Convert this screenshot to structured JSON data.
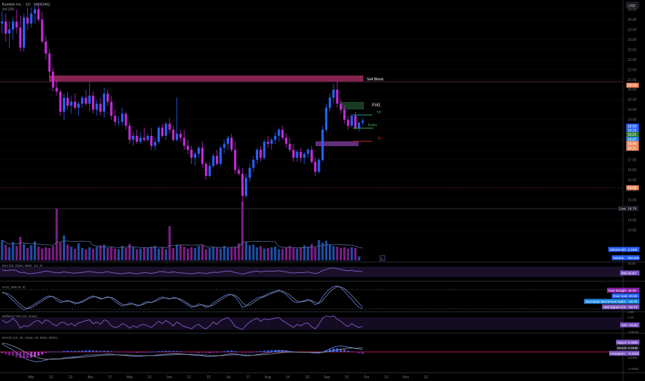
{
  "header": {
    "title": "Bumble Inc. · 1D · NASDAQ",
    "indicator": "Vol (20)",
    "currency": "USD"
  },
  "price_axis": {
    "ticks": [
      "24.50",
      "24.00",
      "23.50",
      "23.00",
      "22.50",
      "22.00",
      "21.50",
      "21.00",
      "20.50",
      "20.00",
      "19.50",
      "19.00",
      "18.50",
      "18.00",
      "17.50",
      "17.00",
      "16.50",
      "16.00",
      "15.50",
      "15.00",
      "14.50",
      "14.00",
      "13.50"
    ],
    "tags": [
      {
        "label": "20.74",
        "color": "#f08a60"
      },
      {
        "label": "19.63",
        "color": "#2962ff"
      },
      {
        "label": "19.22",
        "color": "#2962ff"
      },
      {
        "label": "19.01",
        "color": "#2e7d32"
      },
      {
        "label": "18.87",
        "color": "#1e88e5"
      },
      {
        "label": "18.40",
        "color": "#f08a60"
      },
      {
        "label": "18.21",
        "color": "#f08a60"
      },
      {
        "label": "15.93",
        "color": "#f08a60"
      }
    ],
    "low_label": "Low",
    "low_value": "14.74"
  },
  "annotations": {
    "sell_block": "Sell Block",
    "fvg": "FVG",
    "tp": "TP",
    "entry": "Entry",
    "sl": "SL"
  },
  "volume_panel": {
    "label1": "Volume MA",
    "value1": "2.23M",
    "label2": "Volume",
    "value2": "611.97K",
    "ticks": [
      "30.00"
    ]
  },
  "rsi_panel": {
    "title": "RSI (10, close, SMA, 14, 2)",
    "label": "RSI",
    "value": "51.67"
  },
  "stoch_panel": {
    "title": "UCS_SMI (5, 3)",
    "labels": [
      {
        "label": "Over Bought",
        "value": "40.00"
      },
      {
        "label": "Over Sold",
        "value": "-40.00"
      },
      {
        "label": "Stochastic Momentum Index",
        "value": "-40.76"
      },
      {
        "label": "SMI Signal Line",
        "value": "-32.73"
      }
    ],
    "ticks": [
      "0.00"
    ]
  },
  "williams_panel": {
    "title": "Williams %R (10, close)",
    "label": "%R",
    "value": "-74.25",
    "ticks": [
      "0.00",
      "-100.00"
    ]
  },
  "macd_panel": {
    "title": "MACD (12, 26, close, 10, EMA, EMA)",
    "labels": [
      {
        "label": "Signal",
        "value": "0.4350"
      },
      {
        "label": "MACD",
        "value": "0.2330"
      },
      {
        "label": "Histogram",
        "value": "-0.2020"
      }
    ],
    "ticks": [
      "0.0000",
      "-1.0000"
    ]
  },
  "time_axis": {
    "labels": [
      "Mar",
      "13",
      "22",
      "Apr",
      "17",
      "May",
      "15",
      "Jun",
      "12",
      "22",
      "Jul",
      "17",
      "Aug",
      "14",
      "23",
      "Sep",
      "15",
      "Oct",
      "13",
      "Nov",
      "13"
    ]
  },
  "chart_data": {
    "type": "candlestick",
    "symbol": "BMBL",
    "interval": "1D",
    "exchange": "NASDAQ",
    "y_range": [
      13.5,
      24.8
    ],
    "zones": {
      "sell_block": [
        20.62,
        20.8
      ],
      "fvg": [
        19.35,
        19.6
      ],
      "demand": [
        18.3,
        18.42
      ]
    },
    "levels": {
      "tp": 19.3,
      "entry": 18.98,
      "sl": 18.45,
      "low": 14.74,
      "support": 15.93,
      "resistance": 20.62
    },
    "candles": [
      [
        23.8,
        24.4,
        23.3,
        23.9
      ],
      [
        23.9,
        24.3,
        22.9,
        23.3
      ],
      [
        23.3,
        23.9,
        22.6,
        23.5
      ],
      [
        23.5,
        24.1,
        23.0,
        23.9
      ],
      [
        23.9,
        24.5,
        23.3,
        23.6
      ],
      [
        23.6,
        24.2,
        22.4,
        22.6
      ],
      [
        22.6,
        24.3,
        22.4,
        24.1
      ],
      [
        24.1,
        24.6,
        23.5,
        23.8
      ],
      [
        23.8,
        24.6,
        23.6,
        24.3
      ],
      [
        24.3,
        24.7,
        23.8,
        24.5
      ],
      [
        24.5,
        24.8,
        23.9,
        24.0
      ],
      [
        24.0,
        24.4,
        22.8,
        22.9
      ],
      [
        22.9,
        23.2,
        22.0,
        22.3
      ],
      [
        22.3,
        22.5,
        21.1,
        21.4
      ],
      [
        21.4,
        21.6,
        20.4,
        20.6
      ],
      [
        20.6,
        21.0,
        20.2,
        20.4
      ],
      [
        20.4,
        20.5,
        19.2,
        19.4
      ],
      [
        19.4,
        20.3,
        19.0,
        20.1
      ],
      [
        20.1,
        20.4,
        19.5,
        19.7
      ],
      [
        19.7,
        20.2,
        19.3,
        19.9
      ],
      [
        19.9,
        20.3,
        19.5,
        19.6
      ],
      [
        19.6,
        19.9,
        19.2,
        19.8
      ],
      [
        19.8,
        20.2,
        19.6,
        20.1
      ],
      [
        20.1,
        20.5,
        19.7,
        19.8
      ],
      [
        19.8,
        20.9,
        19.4,
        20.2
      ],
      [
        20.2,
        20.4,
        19.3,
        19.5
      ],
      [
        19.5,
        20.0,
        19.2,
        19.8
      ],
      [
        19.8,
        20.1,
        19.2,
        19.4
      ],
      [
        19.4,
        20.6,
        19.1,
        20.3
      ],
      [
        20.3,
        20.5,
        19.7,
        19.9
      ],
      [
        19.9,
        20.2,
        19.0,
        19.2
      ],
      [
        19.2,
        19.5,
        18.7,
        18.9
      ],
      [
        18.9,
        19.2,
        18.7,
        18.9
      ],
      [
        18.9,
        19.6,
        18.7,
        19.3
      ],
      [
        19.3,
        19.4,
        18.5,
        18.7
      ],
      [
        18.7,
        18.9,
        17.8,
        18.0
      ],
      [
        18.0,
        18.4,
        17.7,
        18.2
      ],
      [
        18.2,
        18.5,
        17.8,
        17.9
      ],
      [
        17.9,
        18.4,
        17.8,
        18.1
      ],
      [
        18.1,
        18.6,
        17.9,
        18.0
      ],
      [
        18.0,
        18.3,
        17.9,
        18.2
      ],
      [
        18.2,
        18.6,
        17.5,
        17.7
      ],
      [
        17.7,
        18.1,
        17.5,
        17.9
      ],
      [
        17.9,
        18.7,
        17.8,
        18.6
      ],
      [
        18.6,
        18.8,
        18.1,
        18.2
      ],
      [
        18.2,
        18.9,
        18.0,
        18.8
      ],
      [
        18.8,
        19.1,
        18.3,
        18.5
      ],
      [
        18.5,
        18.7,
        17.9,
        18.0
      ],
      [
        18.0,
        20.1,
        17.9,
        18.3
      ],
      [
        18.3,
        18.5,
        17.9,
        18.1
      ],
      [
        18.1,
        18.5,
        17.5,
        17.7
      ],
      [
        17.7,
        18.0,
        17.3,
        17.5
      ],
      [
        17.5,
        17.7,
        16.8,
        17.1
      ],
      [
        17.1,
        17.4,
        16.7,
        17.3
      ],
      [
        17.3,
        17.7,
        17.1,
        17.6
      ],
      [
        17.6,
        17.9,
        16.6,
        16.8
      ],
      [
        16.8,
        16.9,
        16.0,
        16.2
      ],
      [
        16.2,
        16.9,
        16.1,
        16.7
      ],
      [
        16.7,
        17.3,
        16.6,
        17.2
      ],
      [
        17.2,
        17.5,
        16.7,
        16.8
      ],
      [
        16.8,
        17.7,
        16.7,
        17.6
      ],
      [
        17.6,
        18.0,
        17.3,
        17.8
      ],
      [
        17.8,
        18.2,
        17.5,
        18.1
      ],
      [
        18.1,
        18.3,
        17.4,
        17.5
      ],
      [
        17.5,
        17.9,
        16.3,
        16.5
      ],
      [
        16.5,
        16.7,
        16.2,
        16.3
      ],
      [
        16.3,
        16.6,
        14.7,
        15.2
      ],
      [
        15.2,
        16.3,
        15.1,
        16.1
      ],
      [
        16.1,
        16.8,
        15.9,
        16.6
      ],
      [
        16.6,
        17.2,
        16.4,
        17.0
      ],
      [
        17.0,
        17.6,
        16.8,
        17.5
      ],
      [
        17.5,
        17.7,
        16.9,
        17.1
      ],
      [
        17.1,
        18.0,
        17.0,
        17.9
      ],
      [
        17.9,
        18.2,
        17.6,
        17.8
      ],
      [
        17.8,
        18.1,
        17.5,
        18.0
      ],
      [
        18.0,
        18.4,
        17.8,
        18.2
      ],
      [
        18.2,
        18.6,
        17.9,
        18.5
      ],
      [
        18.5,
        18.7,
        18.0,
        18.1
      ],
      [
        18.1,
        18.3,
        17.6,
        17.8
      ],
      [
        17.8,
        18.1,
        17.4,
        17.5
      ],
      [
        17.5,
        17.8,
        16.9,
        17.1
      ],
      [
        17.1,
        17.5,
        16.9,
        17.4
      ],
      [
        17.4,
        17.6,
        16.9,
        17.1
      ],
      [
        17.1,
        17.4,
        16.8,
        17.3
      ],
      [
        17.3,
        17.6,
        17.1,
        17.5
      ],
      [
        17.5,
        17.7,
        16.8,
        16.9
      ],
      [
        16.9,
        17.1,
        16.2,
        16.4
      ],
      [
        16.4,
        17.1,
        16.3,
        17.0
      ],
      [
        17.0,
        18.7,
        16.9,
        18.5
      ],
      [
        18.5,
        19.8,
        18.4,
        19.6
      ],
      [
        19.6,
        20.3,
        19.4,
        20.1
      ],
      [
        20.1,
        20.8,
        19.8,
        20.5
      ],
      [
        20.5,
        20.9,
        19.6,
        19.8
      ],
      [
        19.8,
        20.0,
        19.3,
        19.5
      ],
      [
        19.5,
        19.7,
        18.8,
        19.0
      ],
      [
        19.0,
        19.2,
        18.5,
        18.7
      ],
      [
        18.7,
        19.3,
        18.6,
        19.2
      ],
      [
        19.2,
        19.4,
        18.5,
        18.6
      ],
      [
        18.6,
        18.9,
        18.4,
        18.85
      ],
      [
        18.85,
        19.1,
        18.7,
        18.95
      ]
    ],
    "volume": [
      3.1,
      2.4,
      2.0,
      2.8,
      2.2,
      3.6,
      2.5,
      1.9,
      2.3,
      2.9,
      2.1,
      1.8,
      2.0,
      1.9,
      2.2,
      7.9,
      2.7,
      3.8,
      2.4,
      2.1,
      1.8,
      2.6,
      1.9,
      1.7,
      2.0,
      1.8,
      2.1,
      2.3,
      2.4,
      1.9,
      2.0,
      1.8,
      1.7,
      2.2,
      1.9,
      2.5,
      2.0,
      1.7,
      1.8,
      2.0,
      1.9,
      2.1,
      2.2,
      1.8,
      2.0,
      1.7,
      5.2,
      1.9,
      2.4,
      2.3,
      2.1,
      1.8,
      2.0,
      1.9,
      2.2,
      2.3,
      1.7,
      1.9,
      2.1,
      2.0,
      1.8,
      2.2,
      1.9,
      2.0,
      2.1,
      2.6,
      8.9,
      2.8,
      2.3,
      2.4,
      2.0,
      2.2,
      1.8,
      1.9,
      2.0,
      2.1,
      1.7,
      1.8,
      2.0,
      2.2,
      1.9,
      1.8,
      2.0,
      2.3,
      2.1,
      2.5,
      2.0,
      3.1,
      2.7,
      3.0,
      2.4,
      2.2,
      2.1,
      1.9,
      2.0,
      1.8,
      2.0,
      1.9,
      0.6
    ],
    "volume_ma": 2.23,
    "rsi": [
      62,
      58,
      60,
      63,
      58,
      45,
      48,
      40,
      38,
      42,
      45,
      50,
      55,
      52,
      48,
      44,
      46,
      50,
      47,
      44,
      42,
      45,
      47,
      50,
      52,
      49,
      46,
      44,
      48,
      51,
      47,
      43,
      40,
      38,
      42,
      45,
      40,
      38,
      42,
      46,
      44,
      41,
      45,
      50,
      52,
      48,
      46,
      50,
      47,
      44,
      42,
      40,
      38,
      41,
      45,
      43,
      39,
      44,
      48,
      46,
      49,
      53,
      56,
      52,
      46,
      42,
      35,
      42,
      48,
      52,
      55,
      50,
      54,
      56,
      53,
      55,
      58,
      54,
      50,
      46,
      43,
      46,
      45,
      47,
      49,
      44,
      40,
      45,
      58,
      66,
      72,
      75,
      70,
      66,
      60,
      57,
      59,
      55,
      53,
      52
    ],
    "smi": [
      30,
      25,
      10,
      -5,
      -20,
      -35,
      -45,
      -40,
      -30,
      -20,
      -10,
      0,
      10,
      15,
      10,
      -5,
      -15,
      -10,
      -5,
      -12,
      -20,
      -15,
      -8,
      0,
      10,
      15,
      8,
      0,
      5,
      12,
      5,
      -10,
      -20,
      -30,
      -25,
      -15,
      -20,
      -30,
      -25,
      -15,
      -10,
      -15,
      -5,
      5,
      10,
      5,
      0,
      8,
      5,
      -5,
      -15,
      -25,
      -35,
      -30,
      -20,
      -25,
      -35,
      -30,
      -15,
      -5,
      5,
      15,
      22,
      20,
      10,
      -10,
      -35,
      -30,
      -15,
      -5,
      5,
      10,
      15,
      25,
      30,
      35,
      40,
      30,
      20,
      5,
      -10,
      -15,
      -10,
      -5,
      0,
      -10,
      -25,
      -15,
      10,
      30,
      45,
      55,
      58,
      50,
      35,
      15,
      0,
      -20,
      -35,
      -40
    ],
    "smi_signal": [
      28,
      27,
      20,
      8,
      -8,
      -22,
      -35,
      -40,
      -37,
      -28,
      -18,
      -8,
      3,
      10,
      12,
      5,
      -6,
      -11,
      -8,
      -9,
      -14,
      -17,
      -12,
      -5,
      4,
      10,
      10,
      5,
      4,
      8,
      8,
      0,
      -12,
      -22,
      -25,
      -22,
      -20,
      -24,
      -26,
      -21,
      -15,
      -13,
      -10,
      -2,
      5,
      6,
      3,
      4,
      5,
      0,
      -8,
      -18,
      -28,
      -32,
      -28,
      -24,
      -28,
      -31,
      -25,
      -14,
      -3,
      7,
      16,
      20,
      17,
      5,
      -15,
      -27,
      -25,
      -15,
      -4,
      5,
      11,
      18,
      25,
      31,
      36,
      35,
      28,
      18,
      4,
      -8,
      -12,
      -10,
      -5,
      -5,
      -14,
      -18,
      -6,
      14,
      32,
      46,
      54,
      54,
      46,
      32,
      17,
      0,
      -18,
      -33
    ],
    "williams_r": [
      -30,
      -50,
      -40,
      -20,
      -45,
      -85,
      -70,
      -75,
      -60,
      -40,
      -35,
      -55,
      -30,
      -40,
      -60,
      -70,
      -50,
      -45,
      -65,
      -55,
      -70,
      -50,
      -45,
      -35,
      -30,
      -55,
      -45,
      -60,
      -30,
      -40,
      -70,
      -80,
      -75,
      -55,
      -65,
      -85,
      -70,
      -80,
      -65,
      -60,
      -70,
      -80,
      -60,
      -40,
      -55,
      -35,
      -50,
      -70,
      -45,
      -60,
      -75,
      -80,
      -90,
      -70,
      -60,
      -80,
      -90,
      -70,
      -45,
      -60,
      -35,
      -25,
      -15,
      -40,
      -75,
      -85,
      -95,
      -65,
      -45,
      -30,
      -20,
      -40,
      -25,
      -30,
      -25,
      -20,
      -15,
      -35,
      -50,
      -65,
      -80,
      -60,
      -70,
      -55,
      -50,
      -75,
      -90,
      -60,
      -20,
      -5,
      -10,
      -5,
      -25,
      -40,
      -60,
      -75,
      -55,
      -70,
      -80,
      -74
    ],
    "macd": [
      0.8,
      0.6,
      0.4,
      0.2,
      -0.1,
      -0.4,
      -0.6,
      -0.8,
      -0.9,
      -1.0,
      -1.0,
      -0.95,
      -0.85,
      -0.75,
      -0.7,
      -0.72,
      -0.7,
      -0.6,
      -0.55,
      -0.55,
      -0.5,
      -0.48,
      -0.42,
      -0.35,
      -0.3,
      -0.3,
      -0.28,
      -0.27,
      -0.22,
      -0.2,
      -0.22,
      -0.27,
      -0.32,
      -0.35,
      -0.38,
      -0.42,
      -0.44,
      -0.45,
      -0.44,
      -0.42,
      -0.4,
      -0.4,
      -0.36,
      -0.3,
      -0.27,
      -0.22,
      -0.2,
      -0.18,
      -0.17,
      -0.19,
      -0.22,
      -0.27,
      -0.33,
      -0.36,
      -0.37,
      -0.41,
      -0.46,
      -0.47,
      -0.44,
      -0.42,
      -0.37,
      -0.3,
      -0.22,
      -0.18,
      -0.2,
      -0.25,
      -0.38,
      -0.42,
      -0.4,
      -0.34,
      -0.27,
      -0.22,
      -0.15,
      -0.08,
      -0.02,
      0.04,
      0.1,
      0.12,
      0.1,
      0.05,
      0.0,
      -0.02,
      -0.04,
      -0.05,
      -0.04,
      -0.07,
      -0.12,
      -0.12,
      -0.02,
      0.15,
      0.32,
      0.48,
      0.58,
      0.6,
      0.57,
      0.5,
      0.45,
      0.36,
      0.28,
      0.23
    ],
    "macd_signal": [
      0.9,
      0.85,
      0.75,
      0.6,
      0.45,
      0.25,
      0.05,
      -0.15,
      -0.32,
      -0.48,
      -0.6,
      -0.7,
      -0.75,
      -0.76,
      -0.75,
      -0.74,
      -0.73,
      -0.7,
      -0.67,
      -0.64,
      -0.61,
      -0.58,
      -0.55,
      -0.51,
      -0.47,
      -0.44,
      -0.41,
      -0.38,
      -0.35,
      -0.32,
      -0.3,
      -0.3,
      -0.3,
      -0.31,
      -0.32,
      -0.34,
      -0.36,
      -0.38,
      -0.39,
      -0.4,
      -0.4,
      -0.4,
      -0.39,
      -0.37,
      -0.35,
      -0.33,
      -0.3,
      -0.28,
      -0.26,
      -0.25,
      -0.24,
      -0.25,
      -0.26,
      -0.28,
      -0.3,
      -0.32,
      -0.35,
      -0.37,
      -0.38,
      -0.39,
      -0.39,
      -0.37,
      -0.34,
      -0.31,
      -0.29,
      -0.28,
      -0.3,
      -0.33,
      -0.34,
      -0.34,
      -0.33,
      -0.31,
      -0.28,
      -0.24,
      -0.2,
      -0.16,
      -0.11,
      -0.07,
      -0.04,
      -0.02,
      -0.02,
      -0.02,
      -0.02,
      -0.03,
      -0.03,
      -0.04,
      -0.05,
      -0.06,
      -0.05,
      -0.01,
      0.05,
      0.13,
      0.21,
      0.28,
      0.33,
      0.37,
      0.39,
      0.4,
      0.41,
      0.43
    ]
  }
}
